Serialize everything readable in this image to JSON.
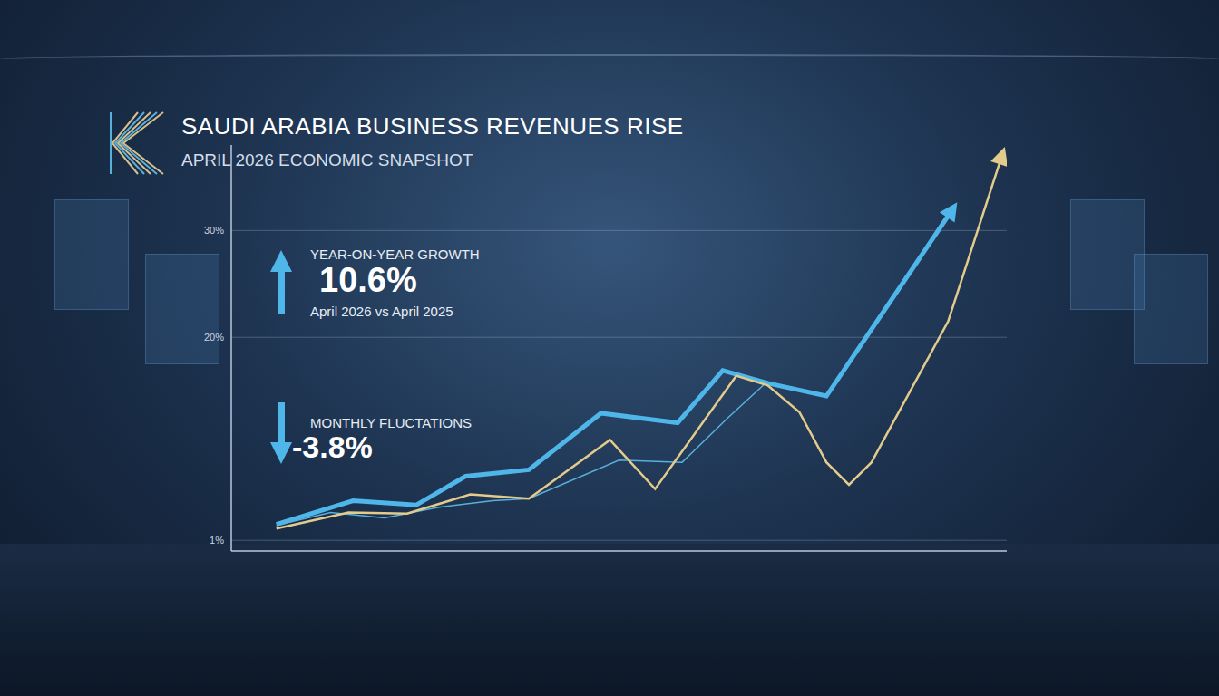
{
  "chart_data": {
    "type": "line",
    "title": "SAUDI ARABIA BUSINESS REVENUES RISE",
    "subtitle": "APRIL 2026 ECONOMIC SNAPSHOT",
    "series": [
      {
        "color": "#4fb6ea",
        "marker": "arrow",
        "line_style": "solid",
        "x": [
          30,
          38.5,
          45.5,
          51,
          58,
          66,
          74.5,
          79.5,
          84.5,
          91,
          105
        ],
        "values": [
          2.5,
          4.7,
          4.3,
          7.0,
          7.6,
          12.9,
          12.0,
          16.9,
          15.7,
          14.5,
          32.0
        ]
      },
      {
        "color": "#5ab0dc",
        "line_style": "solid",
        "x": [
          30,
          36,
          42,
          48,
          54,
          58,
          68,
          75,
          80,
          84.5
        ],
        "values": [
          2.4,
          3.6,
          3.1,
          4.1,
          4.7,
          4.9,
          8.5,
          8.3,
          12.4,
          15.9
        ]
      },
      {
        "color": "#e3cb8c",
        "marker": "arrow",
        "line_style": "solid",
        "x": [
          30,
          38,
          44.5,
          51.5,
          58,
          67,
          72,
          81,
          84.5,
          88,
          91,
          93.5,
          96,
          104.5,
          110.5
        ],
        "values": [
          2.1,
          3.6,
          3.5,
          5.3,
          4.9,
          10.4,
          5.8,
          16.4,
          15.5,
          13.0,
          8.3,
          6.2,
          8.3,
          21.5,
          37.1
        ]
      }
    ],
    "xlim": [
      25,
      111
    ],
    "xticks": [
      25,
      30,
      35,
      40,
      45,
      50,
      55,
      60,
      65,
      70,
      75,
      80,
      85,
      90,
      95,
      100,
      105,
      110
    ],
    "ylim": [
      0,
      38
    ],
    "yticks": [
      {
        "value": 1,
        "label": "1%"
      },
      {
        "value": 20,
        "label": "20%"
      },
      {
        "value": 30,
        "label": "30%"
      }
    ],
    "tick_labels": "y",
    "grid": true,
    "annotations": [
      {
        "label": "YEAR-ON-YEAR GROWTH",
        "value": 10.6,
        "value_label": "10.6%",
        "caption": "April 2026 vs April 2025"
      },
      {
        "label": "MONTHLY FLUCTATIONS",
        "value": -3.8,
        "value_label": "-3.8%"
      }
    ]
  }
}
